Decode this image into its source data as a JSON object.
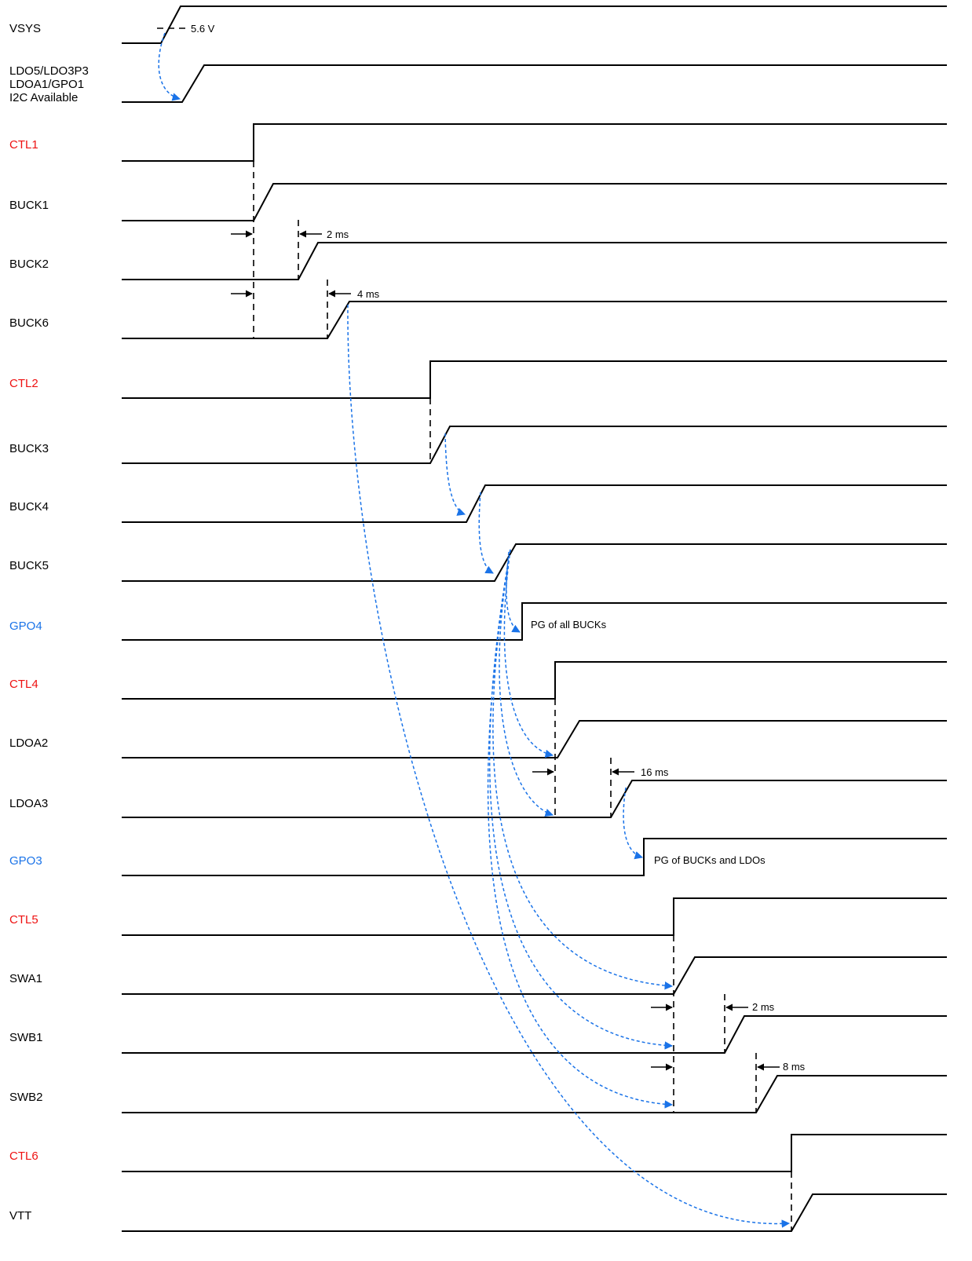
{
  "colors": {
    "black": "#000000",
    "red": "#ee1111",
    "blue": "#1a73e8"
  },
  "signals": [
    {
      "id": "vsys",
      "lines": [
        "VSYS"
      ],
      "color": "black"
    },
    {
      "id": "ldo5",
      "lines": [
        "LDO5/LDO3P3",
        "LDOA1/GPO1",
        "I2C Available"
      ],
      "color": "black"
    },
    {
      "id": "ctl1",
      "lines": [
        "CTL1"
      ],
      "color": "red"
    },
    {
      "id": "buck1",
      "lines": [
        "BUCK1"
      ],
      "color": "black"
    },
    {
      "id": "buck2",
      "lines": [
        "BUCK2"
      ],
      "color": "black"
    },
    {
      "id": "buck6",
      "lines": [
        "BUCK6"
      ],
      "color": "black"
    },
    {
      "id": "ctl2",
      "lines": [
        "CTL2"
      ],
      "color": "red"
    },
    {
      "id": "buck3",
      "lines": [
        "BUCK3"
      ],
      "color": "black"
    },
    {
      "id": "buck4",
      "lines": [
        "BUCK4"
      ],
      "color": "black"
    },
    {
      "id": "buck5",
      "lines": [
        "BUCK5"
      ],
      "color": "black"
    },
    {
      "id": "gpo4",
      "lines": [
        "GPO4"
      ],
      "color": "blue"
    },
    {
      "id": "ctl4",
      "lines": [
        "CTL4"
      ],
      "color": "red"
    },
    {
      "id": "ldoa2",
      "lines": [
        "LDOA2"
      ],
      "color": "black"
    },
    {
      "id": "ldoa3",
      "lines": [
        "LDOA3"
      ],
      "color": "black"
    },
    {
      "id": "gpo3",
      "lines": [
        "GPO3"
      ],
      "color": "blue"
    },
    {
      "id": "ctl5",
      "lines": [
        "CTL5"
      ],
      "color": "red"
    },
    {
      "id": "swa1",
      "lines": [
        "SWA1"
      ],
      "color": "black"
    },
    {
      "id": "swb1",
      "lines": [
        "SWB1"
      ],
      "color": "black"
    },
    {
      "id": "swb2",
      "lines": [
        "SWB2"
      ],
      "color": "black"
    },
    {
      "id": "ctl6",
      "lines": [
        "CTL6"
      ],
      "color": "red"
    },
    {
      "id": "vtt",
      "lines": [
        "VTT"
      ],
      "color": "black"
    }
  ],
  "annotations": {
    "vsys_threshold": "5.6 V",
    "buck2_delay": "2 ms",
    "buck6_delay": "4 ms",
    "gpo4_note": "PG of all BUCKs",
    "ldoa3_delay": "16 ms",
    "gpo3_note": "PG of BUCKs and LDOs",
    "swb1_delay": "2 ms",
    "swb2_delay": "8 ms"
  }
}
